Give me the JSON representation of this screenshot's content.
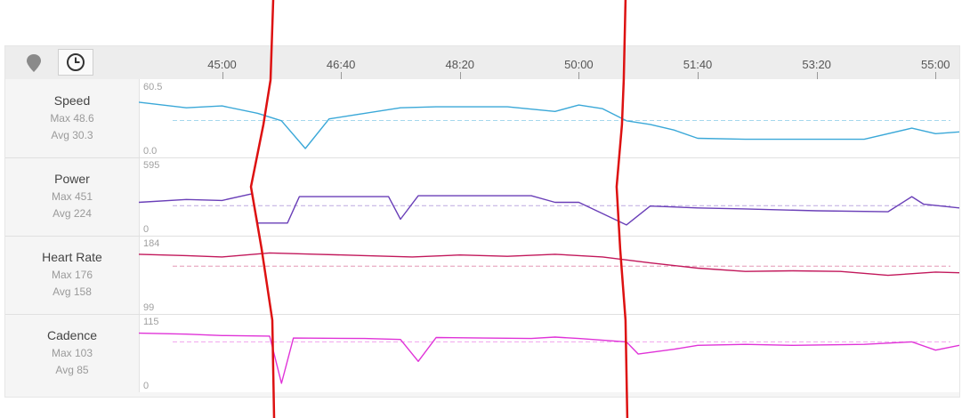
{
  "toolbar": {
    "map_icon": "map-pin-icon",
    "time_icon": "clock-icon"
  },
  "time_axis": {
    "start": "43:50",
    "end": "55:20",
    "ticks": [
      "45:00",
      "46:40",
      "48:20",
      "50:00",
      "51:40",
      "53:20",
      "55:00"
    ]
  },
  "metrics": [
    {
      "key": "speed",
      "title": "Speed",
      "max_text": "Max 48.6",
      "avg_text": "Avg 30.3"
    },
    {
      "key": "power",
      "title": "Power",
      "max_text": "Max 451",
      "avg_text": "Avg 224"
    },
    {
      "key": "heart_rate",
      "title": "Heart Rate",
      "max_text": "Max 176",
      "avg_text": "Avg 158"
    },
    {
      "key": "cadence",
      "title": "Cadence",
      "max_text": "Max 103",
      "avg_text": "Avg 85"
    }
  ],
  "chart_data": {
    "type": "line",
    "x_unit": "elapsed time (mm:ss)",
    "x_range": [
      "43:50",
      "55:20"
    ],
    "grid": false,
    "series": [
      {
        "name": "Speed",
        "color": "#3aa8d8",
        "ylim": [
          0.0,
          60.5
        ],
        "ymin_label": "0.0",
        "ymax_label": "60.5",
        "avg": 30.3,
        "max": 48.6,
        "x": [
          "43:50",
          "44:30",
          "45:00",
          "45:30",
          "45:50",
          "46:10",
          "46:30",
          "47:00",
          "47:30",
          "48:00",
          "49:00",
          "49:40",
          "50:00",
          "50:20",
          "50:40",
          "51:00",
          "51:20",
          "51:40",
          "52:20",
          "53:00",
          "54:00",
          "54:40",
          "55:00",
          "55:20"
        ],
        "y": [
          50,
          44,
          46,
          38,
          30,
          0,
          32,
          38,
          44,
          45,
          45,
          40,
          47,
          43,
          30,
          26,
          20,
          11,
          10,
          10,
          10,
          22,
          16,
          18
        ]
      },
      {
        "name": "Power",
        "color": "#6a3fb8",
        "ylim": [
          0,
          595
        ],
        "ymin_label": "0",
        "ymax_label": "595",
        "avg": 224,
        "max": 451,
        "x": [
          "43:50",
          "44:30",
          "45:00",
          "45:25",
          "45:30",
          "45:55",
          "46:05",
          "46:40",
          "47:20",
          "47:30",
          "47:45",
          "48:30",
          "49:20",
          "49:40",
          "50:00",
          "50:40",
          "51:00",
          "51:40",
          "52:20",
          "53:20",
          "54:20",
          "54:40",
          "54:50",
          "55:20"
        ],
        "y": [
          260,
          290,
          280,
          350,
          40,
          40,
          320,
          320,
          320,
          80,
          330,
          330,
          330,
          260,
          260,
          20,
          220,
          200,
          190,
          170,
          160,
          320,
          240,
          200
        ]
      },
      {
        "name": "Heart Rate",
        "color": "#c2185b",
        "ylim": [
          99,
          184
        ],
        "ymin_label": "99",
        "ymax_label": "184",
        "avg": 158,
        "max": 176,
        "x": [
          "43:50",
          "44:30",
          "45:00",
          "45:40",
          "46:20",
          "47:00",
          "47:40",
          "48:20",
          "49:00",
          "49:40",
          "50:20",
          "51:00",
          "51:40",
          "52:20",
          "53:00",
          "53:40",
          "54:20",
          "55:00",
          "55:20"
        ],
        "y": [
          176,
          174,
          172,
          178,
          176,
          174,
          172,
          175,
          173,
          176,
          172,
          163,
          155,
          150,
          151,
          150,
          144,
          149,
          148
        ]
      },
      {
        "name": "Cadence",
        "color": "#e033d8",
        "ylim": [
          0,
          115
        ],
        "ymin_label": "0",
        "ymax_label": "115",
        "avg": 85,
        "max": 103,
        "x": [
          "43:50",
          "44:30",
          "45:00",
          "45:40",
          "45:50",
          "46:00",
          "47:00",
          "47:30",
          "47:45",
          "48:00",
          "48:40",
          "49:20",
          "49:40",
          "50:00",
          "50:40",
          "50:50",
          "51:20",
          "51:40",
          "52:20",
          "53:00",
          "54:00",
          "54:40",
          "55:00",
          "55:20"
        ],
        "y": [
          103,
          101,
          98,
          97,
          0,
          93,
          92,
          90,
          45,
          94,
          93,
          92,
          95,
          92,
          85,
          60,
          70,
          78,
          80,
          78,
          80,
          85,
          68,
          78
        ]
      }
    ],
    "annotations": [
      {
        "type": "freehand-vertical-line",
        "color": "#dd1111",
        "at": "45:40"
      },
      {
        "type": "freehand-vertical-line",
        "color": "#dd1111",
        "at": "50:40"
      }
    ]
  }
}
